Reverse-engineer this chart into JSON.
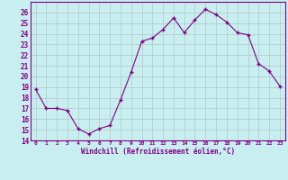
{
  "x": [
    0,
    1,
    2,
    3,
    4,
    5,
    6,
    7,
    8,
    9,
    10,
    11,
    12,
    13,
    14,
    15,
    16,
    17,
    18,
    19,
    20,
    21,
    22,
    23
  ],
  "y": [
    18.8,
    17.0,
    17.0,
    16.8,
    15.1,
    14.6,
    15.1,
    15.4,
    17.8,
    20.4,
    23.3,
    23.6,
    24.4,
    25.5,
    24.1,
    25.3,
    26.3,
    25.8,
    25.1,
    24.1,
    23.9,
    21.2,
    20.5,
    19.1
  ],
  "line_color": "#800080",
  "marker_color": "#800080",
  "bg_color": "#c8eef0",
  "grid_color": "#b0c8c8",
  "xlabel": "Windchill (Refroidissement éolien,°C)",
  "xlabel_color": "#800080",
  "tick_color": "#800080",
  "ylim": [
    14,
    27
  ],
  "yticks": [
    14,
    15,
    16,
    17,
    18,
    19,
    20,
    21,
    22,
    23,
    24,
    25,
    26
  ],
  "xlim": [
    -0.5,
    23.5
  ],
  "xticks": [
    0,
    1,
    2,
    3,
    4,
    5,
    6,
    7,
    8,
    9,
    10,
    11,
    12,
    13,
    14,
    15,
    16,
    17,
    18,
    19,
    20,
    21,
    22,
    23
  ],
  "xtick_labels": [
    "0",
    "1",
    "2",
    "3",
    "4",
    "5",
    "6",
    "7",
    "8",
    "9",
    "10",
    "11",
    "12",
    "13",
    "14",
    "15",
    "16",
    "17",
    "18",
    "19",
    "20",
    "21",
    "22",
    "23"
  ]
}
